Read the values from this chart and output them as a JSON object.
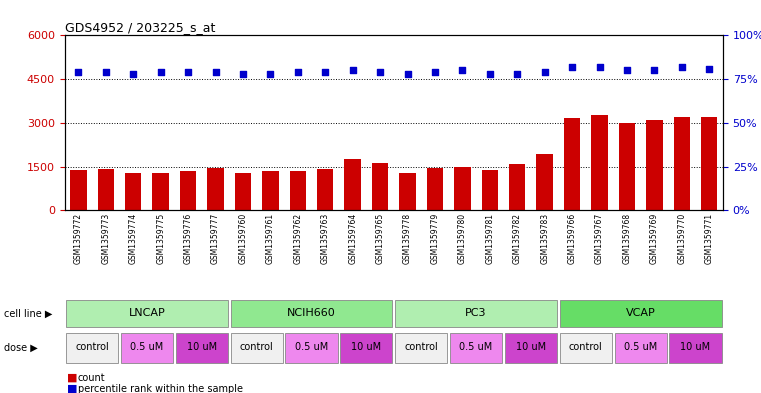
{
  "title": "GDS4952 / 203225_s_at",
  "samples": [
    "GSM1359772",
    "GSM1359773",
    "GSM1359774",
    "GSM1359775",
    "GSM1359776",
    "GSM1359777",
    "GSM1359760",
    "GSM1359761",
    "GSM1359762",
    "GSM1359763",
    "GSM1359764",
    "GSM1359765",
    "GSM1359778",
    "GSM1359779",
    "GSM1359780",
    "GSM1359781",
    "GSM1359782",
    "GSM1359783",
    "GSM1359766",
    "GSM1359767",
    "GSM1359768",
    "GSM1359769",
    "GSM1359770",
    "GSM1359771"
  ],
  "bar_values": [
    1380,
    1400,
    1270,
    1280,
    1350,
    1450,
    1270,
    1350,
    1350,
    1430,
    1750,
    1620,
    1270,
    1450,
    1480,
    1380,
    1580,
    1920,
    3150,
    3280,
    3000,
    3080,
    3200,
    3200
  ],
  "dot_values": [
    79,
    79,
    78,
    79,
    79,
    79,
    78,
    78,
    79,
    79,
    80,
    79,
    78,
    79,
    80,
    78,
    78,
    79,
    82,
    82,
    80,
    80,
    82,
    81
  ],
  "bar_color": "#cc0000",
  "dot_color": "#0000cc",
  "left_ylim": [
    0,
    6000
  ],
  "right_ylim": [
    0,
    100
  ],
  "left_yticks": [
    0,
    1500,
    3000,
    4500,
    6000
  ],
  "right_yticks": [
    0,
    25,
    50,
    75,
    100
  ],
  "grid_values": [
    1500,
    3000,
    4500
  ],
  "cell_lines": [
    {
      "name": "LNCAP",
      "start": 0,
      "end": 6,
      "color": "#b0eeb0"
    },
    {
      "name": "NCIH660",
      "start": 6,
      "end": 12,
      "color": "#90e890"
    },
    {
      "name": "PC3",
      "start": 12,
      "end": 18,
      "color": "#b0eeb0"
    },
    {
      "name": "VCAP",
      "start": 18,
      "end": 24,
      "color": "#66dd66"
    }
  ],
  "doses": [
    {
      "label": "control",
      "start": 0,
      "end": 2,
      "color": "#f0f0f0"
    },
    {
      "label": "0.5 uM",
      "start": 2,
      "end": 4,
      "color": "#ee88ee"
    },
    {
      "label": "10 uM",
      "start": 4,
      "end": 6,
      "color": "#cc44cc"
    },
    {
      "label": "control",
      "start": 6,
      "end": 8,
      "color": "#f0f0f0"
    },
    {
      "label": "0.5 uM",
      "start": 8,
      "end": 10,
      "color": "#ee88ee"
    },
    {
      "label": "10 uM",
      "start": 10,
      "end": 12,
      "color": "#cc44cc"
    },
    {
      "label": "control",
      "start": 12,
      "end": 14,
      "color": "#f0f0f0"
    },
    {
      "label": "0.5 uM",
      "start": 14,
      "end": 16,
      "color": "#ee88ee"
    },
    {
      "label": "10 uM",
      "start": 16,
      "end": 18,
      "color": "#cc44cc"
    },
    {
      "label": "control",
      "start": 18,
      "end": 20,
      "color": "#f0f0f0"
    },
    {
      "label": "0.5 uM",
      "start": 20,
      "end": 22,
      "color": "#ee88ee"
    },
    {
      "label": "10 uM",
      "start": 22,
      "end": 24,
      "color": "#cc44cc"
    }
  ],
  "legend_count_color": "#cc0000",
  "legend_dot_color": "#0000cc",
  "fig_width": 7.61,
  "fig_height": 3.93,
  "tick_bg_color": "#dddddd"
}
